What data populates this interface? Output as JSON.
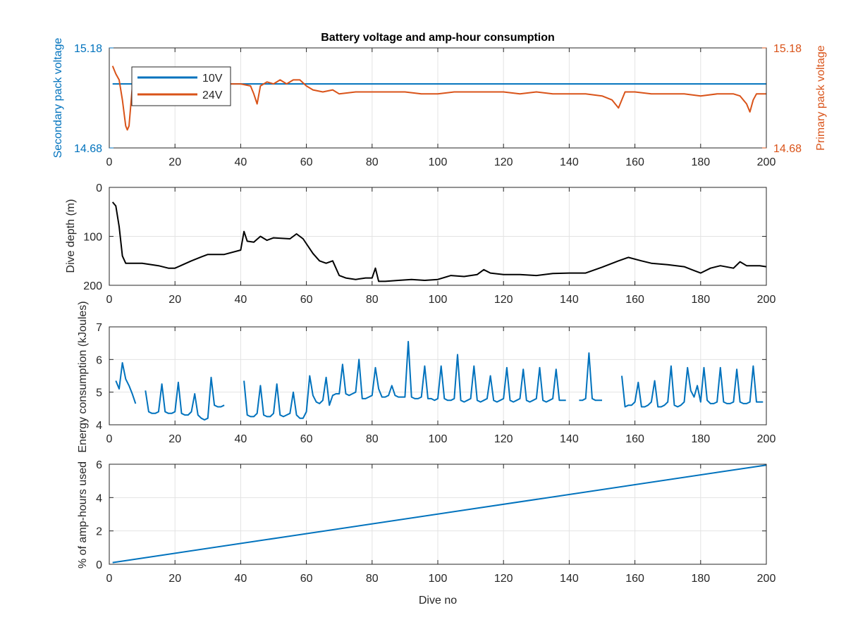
{
  "chart_data": [
    {
      "type": "line",
      "title": "Battery voltage and amp-hour consumption",
      "xlabel": "",
      "xlim": [
        0,
        200
      ],
      "xticks": [
        0,
        20,
        40,
        60,
        80,
        100,
        120,
        140,
        160,
        180,
        200
      ],
      "ylabel_left": "Secondary pack voltage",
      "ylabel_right": "Primary pack voltage",
      "ylim_left": [
        14.68,
        15.18
      ],
      "ylim_right": [
        14.68,
        15.18
      ],
      "yticks_left": [
        "14.68",
        "15.18"
      ],
      "yticks_right": [
        "14.68",
        "15.18"
      ],
      "color_left": "#0072BD",
      "color_right": "#D95319",
      "grid": true,
      "legend": "top-left",
      "series": [
        {
          "name": "10V",
          "axis": "left",
          "color": "#0072BD",
          "x": [
            1,
            200
          ],
          "y": [
            15.0,
            15.0
          ]
        },
        {
          "name": "24V",
          "axis": "right",
          "color": "#D95319",
          "x": [
            1,
            2,
            3,
            4,
            5,
            5.5,
            6,
            7,
            8,
            10,
            15,
            20,
            25,
            30,
            35,
            40,
            43,
            44,
            45,
            46,
            48,
            50,
            52,
            54,
            56,
            58,
            60,
            62,
            65,
            68,
            70,
            75,
            80,
            85,
            90,
            95,
            100,
            105,
            110,
            115,
            120,
            125,
            130,
            135,
            140,
            145,
            150,
            153,
            155,
            157,
            160,
            165,
            170,
            175,
            180,
            185,
            190,
            192,
            194,
            195,
            196,
            197,
            198,
            200
          ],
          "y": [
            15.09,
            15.05,
            15.02,
            14.92,
            14.79,
            14.77,
            14.79,
            14.98,
            15.02,
            15.01,
            15.0,
            15.01,
            15.0,
            15.0,
            15.0,
            15.0,
            14.99,
            14.95,
            14.9,
            14.99,
            15.01,
            15.0,
            15.02,
            15.0,
            15.02,
            15.02,
            14.99,
            14.97,
            14.96,
            14.97,
            14.95,
            14.96,
            14.96,
            14.96,
            14.96,
            14.95,
            14.95,
            14.96,
            14.96,
            14.96,
            14.96,
            14.95,
            14.96,
            14.95,
            14.95,
            14.95,
            14.94,
            14.92,
            14.88,
            14.96,
            14.96,
            14.95,
            14.95,
            14.95,
            14.94,
            14.95,
            14.95,
            14.94,
            14.9,
            14.86,
            14.92,
            14.95,
            14.95,
            14.95
          ]
        }
      ]
    },
    {
      "type": "line",
      "title": "",
      "xlabel": "",
      "ylabel": "Dive depth (m)",
      "xlim": [
        0,
        200
      ],
      "ylim": [
        0,
        200
      ],
      "y_reversed": true,
      "xticks": [
        0,
        20,
        40,
        60,
        80,
        100,
        120,
        140,
        160,
        180,
        200
      ],
      "yticks": [
        0,
        100,
        200
      ],
      "grid": true,
      "series": [
        {
          "color": "#000000",
          "x": [
            1,
            2,
            3,
            4,
            5,
            8,
            10,
            12,
            15,
            18,
            20,
            25,
            28,
            30,
            35,
            40,
            41,
            42,
            44,
            46,
            48,
            50,
            55,
            57,
            59,
            62,
            64,
            66,
            68,
            70,
            72,
            75,
            78,
            80,
            81,
            82,
            84,
            88,
            92,
            96,
            100,
            104,
            108,
            112,
            114,
            116,
            120,
            125,
            130,
            135,
            140,
            145,
            150,
            155,
            158,
            162,
            165,
            170,
            175,
            178,
            180,
            183,
            186,
            190,
            192,
            194,
            198,
            200
          ],
          "y": [
            30,
            38,
            80,
            140,
            155,
            155,
            155,
            157,
            160,
            165,
            165,
            150,
            142,
            137,
            137,
            128,
            90,
            110,
            112,
            100,
            108,
            103,
            105,
            95,
            105,
            135,
            150,
            155,
            150,
            180,
            185,
            188,
            185,
            185,
            165,
            192,
            192,
            190,
            188,
            190,
            188,
            180,
            182,
            178,
            168,
            175,
            178,
            178,
            180,
            176,
            175,
            175,
            163,
            150,
            143,
            150,
            155,
            158,
            162,
            170,
            175,
            165,
            160,
            165,
            152,
            160,
            160,
            162
          ]
        }
      ]
    },
    {
      "type": "line",
      "title": "",
      "xlabel": "",
      "ylabel": "Energy consumption (kJoules)",
      "xlim": [
        0,
        200
      ],
      "ylim": [
        4,
        7
      ],
      "xticks": [
        0,
        20,
        40,
        60,
        80,
        100,
        120,
        140,
        160,
        180,
        200
      ],
      "yticks": [
        4,
        5,
        6,
        7
      ],
      "grid": true,
      "series": [
        {
          "color": "#0072BD",
          "segments": [
            {
              "x": [
                2,
                3,
                4,
                5,
                6,
                7,
                8
              ],
              "y": [
                5.35,
                5.1,
                5.9,
                5.4,
                5.2,
                4.95,
                4.65
              ]
            },
            {
              "x": [
                11,
                12,
                13,
                14,
                15,
                16,
                17,
                18,
                19,
                20,
                21,
                22,
                23,
                24,
                25,
                26,
                27,
                28,
                29,
                30,
                31,
                32,
                33,
                34,
                35
              ],
              "y": [
                5.05,
                4.4,
                4.35,
                4.35,
                4.4,
                5.25,
                4.4,
                4.35,
                4.35,
                4.4,
                5.3,
                4.35,
                4.3,
                4.3,
                4.4,
                4.95,
                4.3,
                4.2,
                4.15,
                4.2,
                5.45,
                4.6,
                4.55,
                4.55,
                4.6
              ]
            },
            {
              "x": [
                41,
                42,
                43,
                44,
                45,
                46,
                47,
                48,
                49,
                50,
                51,
                52,
                53,
                54,
                55,
                56,
                57,
                58,
                59,
                60,
                61,
                62,
                63,
                64,
                65,
                66,
                67,
                68,
                69,
                70,
                71,
                72,
                73,
                74,
                75,
                76,
                77,
                78,
                79,
                80,
                81,
                82,
                83,
                84,
                85,
                86,
                87,
                88,
                89,
                90,
                91,
                92,
                93,
                94,
                95,
                96,
                97,
                98,
                99,
                100,
                101,
                102,
                103,
                104,
                105,
                106,
                107,
                108,
                109,
                110,
                111,
                112,
                113,
                114,
                115,
                116,
                117,
                118,
                119,
                120,
                121,
                122,
                123,
                124,
                125,
                126,
                127,
                128,
                129,
                130,
                131,
                132,
                133,
                134,
                135,
                136,
                137,
                138,
                139
              ],
              "y": [
                5.35,
                4.3,
                4.25,
                4.25,
                4.35,
                5.2,
                4.3,
                4.25,
                4.25,
                4.35,
                5.25,
                4.3,
                4.25,
                4.3,
                4.35,
                5.0,
                4.3,
                4.2,
                4.2,
                4.4,
                5.5,
                4.9,
                4.7,
                4.65,
                4.75,
                5.45,
                4.6,
                4.9,
                4.95,
                4.95,
                5.85,
                4.95,
                4.9,
                4.95,
                5.0,
                6.0,
                4.8,
                4.8,
                4.85,
                4.9,
                5.75,
                5.1,
                4.85,
                4.85,
                4.9,
                5.2,
                4.9,
                4.85,
                4.85,
                4.85,
                6.55,
                4.85,
                4.8,
                4.8,
                4.85,
                5.8,
                4.8,
                4.8,
                4.75,
                4.8,
                5.8,
                4.8,
                4.75,
                4.75,
                4.8,
                6.15,
                4.75,
                4.7,
                4.75,
                4.8,
                5.8,
                4.75,
                4.7,
                4.75,
                4.8,
                5.5,
                4.75,
                4.7,
                4.75,
                4.8,
                5.75,
                4.75,
                4.7,
                4.75,
                4.8,
                5.7,
                4.75,
                4.7,
                4.75,
                4.8,
                5.75,
                4.75,
                4.7,
                4.75,
                4.8,
                5.7,
                4.75,
                4.75,
                4.75
              ]
            },
            {
              "x": [
                143,
                144,
                145,
                146,
                147,
                148,
                149,
                150
              ],
              "y": [
                4.75,
                4.75,
                4.8,
                6.2,
                4.8,
                4.75,
                4.75,
                4.75
              ]
            },
            {
              "x": [
                156,
                157,
                158,
                159,
                160,
                161,
                162,
                163,
                164,
                165,
                166,
                167,
                168,
                169,
                170,
                171,
                172,
                173,
                174,
                175,
                176,
                177,
                178,
                179,
                180,
                181,
                182,
                183,
                184,
                185,
                186,
                187,
                188,
                189,
                190,
                191,
                192,
                193,
                194,
                195,
                196,
                197,
                198,
                199
              ],
              "y": [
                5.5,
                4.55,
                4.6,
                4.6,
                4.7,
                5.3,
                4.55,
                4.55,
                4.6,
                4.7,
                5.35,
                4.55,
                4.55,
                4.6,
                4.7,
                5.8,
                4.6,
                4.55,
                4.6,
                4.7,
                5.75,
                5.05,
                4.85,
                5.2,
                4.7,
                5.75,
                4.75,
                4.65,
                4.65,
                4.7,
                5.75,
                4.7,
                4.65,
                4.65,
                4.7,
                5.7,
                4.7,
                4.65,
                4.65,
                4.7,
                5.8,
                4.7,
                4.7,
                4.7
              ]
            }
          ]
        }
      ]
    },
    {
      "type": "line",
      "title": "",
      "xlabel": "Dive no",
      "ylabel": "% of amp-hours used",
      "xlim": [
        0,
        200
      ],
      "ylim": [
        0,
        6
      ],
      "xticks": [
        0,
        20,
        40,
        60,
        80,
        100,
        120,
        140,
        160,
        180,
        200
      ],
      "yticks": [
        0,
        2,
        4,
        6
      ],
      "grid": true,
      "series": [
        {
          "color": "#0072BD",
          "x": [
            1,
            200
          ],
          "y": [
            0.1,
            5.95
          ]
        }
      ]
    }
  ]
}
